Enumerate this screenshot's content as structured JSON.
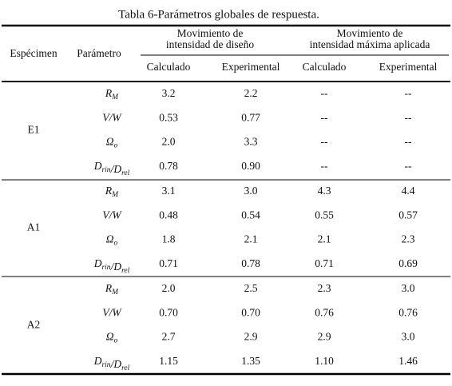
{
  "title": "Tabla 6-Parámetros globales de respuesta.",
  "header": {
    "specimen": "Espécimen",
    "parameter": "Parámetro",
    "groups": [
      {
        "lines": [
          "Movimiento de",
          "intensidad de diseño"
        ],
        "columns": [
          "Calculado",
          "Experimental"
        ]
      },
      {
        "lines": [
          "Movimiento de",
          "intensidad máxima aplicada"
        ],
        "columns": [
          "Calculado",
          "Experimental"
        ]
      }
    ]
  },
  "table": [
    {
      "specimen": "E1",
      "rows": [
        {
          "parameter": [
            {
              "main": "R",
              "sub": "M"
            }
          ],
          "values": [
            "3.2",
            "2.2",
            "--",
            "--"
          ]
        },
        {
          "parameter": [
            {
              "main": "V/W"
            }
          ],
          "values": [
            "0.53",
            "0.77",
            "--",
            "--"
          ]
        },
        {
          "parameter": [
            {
              "main": "Ω",
              "sub": "o"
            }
          ],
          "values": [
            "2.0",
            "3.3",
            "--",
            "--"
          ]
        },
        {
          "parameter": [
            {
              "main": "D",
              "sub": "rin"
            },
            {
              "main": "/D",
              "sub": "rel"
            }
          ],
          "values": [
            "0.78",
            "0.90",
            "--",
            "--"
          ]
        }
      ]
    },
    {
      "specimen": "A1",
      "rows": [
        {
          "parameter": [
            {
              "main": "R",
              "sub": "M"
            }
          ],
          "values": [
            "3.1",
            "3.0",
            "4.3",
            "4.4"
          ]
        },
        {
          "parameter": [
            {
              "main": "V/W"
            }
          ],
          "values": [
            "0.48",
            "0.54",
            "0.55",
            "0.57"
          ]
        },
        {
          "parameter": [
            {
              "main": "Ω",
              "sub": "o"
            }
          ],
          "values": [
            "1.8",
            "2.1",
            "2.1",
            "2.3"
          ]
        },
        {
          "parameter": [
            {
              "main": "D",
              "sub": "rin"
            },
            {
              "main": "/D",
              "sub": "rel"
            }
          ],
          "values": [
            "0.71",
            "0.78",
            "0.71",
            "0.69"
          ]
        }
      ]
    },
    {
      "specimen": "A2",
      "rows": [
        {
          "parameter": [
            {
              "main": "R",
              "sub": "M"
            }
          ],
          "values": [
            "2.0",
            "2.5",
            "2.3",
            "3.0"
          ]
        },
        {
          "parameter": [
            {
              "main": "V/W"
            }
          ],
          "values": [
            "0.70",
            "0.70",
            "0.76",
            "0.76"
          ]
        },
        {
          "parameter": [
            {
              "main": "Ω",
              "sub": "o"
            }
          ],
          "values": [
            "2.7",
            "2.9",
            "2.9",
            "3.0"
          ]
        },
        {
          "parameter": [
            {
              "main": "D",
              "sub": "rin"
            },
            {
              "main": "/D",
              "sub": "rel"
            }
          ],
          "values": [
            "1.15",
            "1.35",
            "1.10",
            "1.46"
          ]
        }
      ]
    }
  ]
}
